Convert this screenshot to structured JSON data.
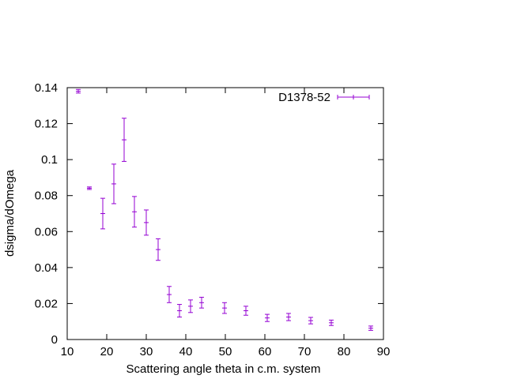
{
  "chart_data": {
    "type": "scatter",
    "xlabel": "Scattering angle theta in c.m. system",
    "ylabel": "dsigma/dOmega",
    "xlim": [
      10,
      90
    ],
    "ylim": [
      0,
      0.14
    ],
    "x_ticks": [
      "10",
      "20",
      "30",
      "40",
      "50",
      "60",
      "70",
      "80",
      "90"
    ],
    "y_ticks": [
      "0",
      "0.02",
      "0.04",
      "0.06",
      "0.08",
      "0.1",
      "0.12",
      "0.14"
    ],
    "grid": false,
    "legend_position": "top-right",
    "series": [
      {
        "name": "D1378-52",
        "color": "#9400d3",
        "style": "points with y error bars",
        "points": [
          {
            "x": 12.8,
            "y": 0.138,
            "err": 0.001
          },
          {
            "x": 15.6,
            "y": 0.0841,
            "err": 0.0007
          },
          {
            "x": 19.0,
            "y": 0.07,
            "err": 0.0085
          },
          {
            "x": 21.8,
            "y": 0.0865,
            "err": 0.011
          },
          {
            "x": 24.4,
            "y": 0.111,
            "err": 0.012
          },
          {
            "x": 27.0,
            "y": 0.071,
            "err": 0.0085
          },
          {
            "x": 30.0,
            "y": 0.065,
            "err": 0.007
          },
          {
            "x": 33.0,
            "y": 0.05,
            "err": 0.006
          },
          {
            "x": 35.8,
            "y": 0.025,
            "err": 0.0045
          },
          {
            "x": 38.4,
            "y": 0.016,
            "err": 0.0035
          },
          {
            "x": 41.2,
            "y": 0.0185,
            "err": 0.0035
          },
          {
            "x": 44.0,
            "y": 0.0205,
            "err": 0.003
          },
          {
            "x": 49.8,
            "y": 0.0175,
            "err": 0.003
          },
          {
            "x": 55.2,
            "y": 0.016,
            "err": 0.0025
          },
          {
            "x": 60.6,
            "y": 0.012,
            "err": 0.002
          },
          {
            "x": 66.0,
            "y": 0.0125,
            "err": 0.002
          },
          {
            "x": 71.6,
            "y": 0.0105,
            "err": 0.0018
          },
          {
            "x": 76.8,
            "y": 0.0093,
            "err": 0.0015
          },
          {
            "x": 86.8,
            "y": 0.0063,
            "err": 0.0012
          }
        ]
      }
    ]
  }
}
